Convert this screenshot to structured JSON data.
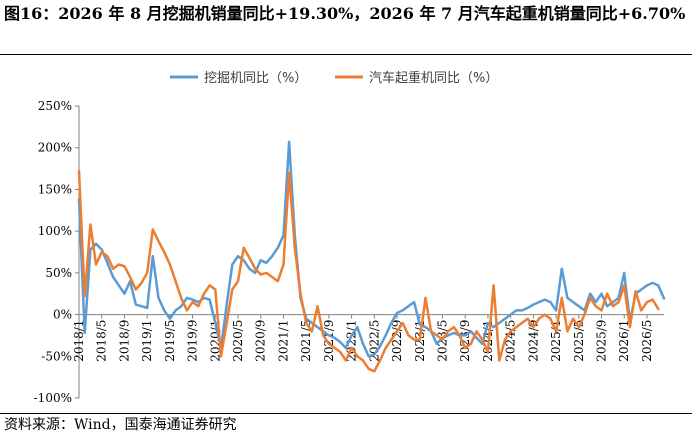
{
  "figure": {
    "title": "图16：2026 年 8 月挖掘机销量同比+19.30%，2026 年 7 月汽车起重机销量同比+6.70%",
    "source": "资料来源：Wind，国泰海通证券研究"
  },
  "chart_data": {
    "type": "line",
    "title": "",
    "xlabel": "",
    "ylabel": "",
    "ylim": [
      -100,
      250
    ],
    "ytick_labels": [
      "250%",
      "200%",
      "150%",
      "100%",
      "50%",
      "0%",
      "-50%",
      "-100%"
    ],
    "x_tick_labels": [
      "2018/1",
      "2018/5",
      "2018/9",
      "2019/1",
      "2019/5",
      "2019/9",
      "2020/1",
      "2020/5",
      "2020/9",
      "2021/1",
      "2021/5",
      "2021/9",
      "2022/1",
      "2022/5",
      "2022/9",
      "2023/1",
      "2023/5",
      "2023/9",
      "2024/1",
      "2024/5",
      "2024/9",
      "2025/1",
      "2025/5",
      "2025/9",
      "2026/1",
      "2026/5"
    ],
    "legend_position": "top-center",
    "grid": false,
    "series": [
      {
        "name": "挖掘机同比（%）",
        "color": "#5B9BD5",
        "points": [
          [
            "2018/1",
            138
          ],
          [
            "2018/2",
            -22
          ],
          [
            "2018/3",
            78
          ],
          [
            "2018/4",
            85
          ],
          [
            "2018/5",
            78
          ],
          [
            "2018/6",
            62
          ],
          [
            "2018/7",
            45
          ],
          [
            "2018/8",
            35
          ],
          [
            "2018/9",
            25
          ],
          [
            "2018/10",
            40
          ],
          [
            "2018/11",
            12
          ],
          [
            "2018/12",
            10
          ],
          [
            "2019/1",
            8
          ],
          [
            "2019/2",
            70
          ],
          [
            "2019/3",
            20
          ],
          [
            "2019/4",
            5
          ],
          [
            "2019/5",
            -5
          ],
          [
            "2019/6",
            5
          ],
          [
            "2019/7",
            10
          ],
          [
            "2019/8",
            20
          ],
          [
            "2019/9",
            18
          ],
          [
            "2019/10",
            15
          ],
          [
            "2019/11",
            20
          ],
          [
            "2019/12",
            18
          ],
          [
            "2020/1",
            -10
          ],
          [
            "2020/2",
            -40
          ],
          [
            "2020/3",
            12
          ],
          [
            "2020/4",
            60
          ],
          [
            "2020/5",
            70
          ],
          [
            "2020/6",
            65
          ],
          [
            "2020/7",
            55
          ],
          [
            "2020/8",
            50
          ],
          [
            "2020/9",
            65
          ],
          [
            "2020/10",
            62
          ],
          [
            "2020/11",
            70
          ],
          [
            "2020/12",
            80
          ],
          [
            "2021/1",
            95
          ],
          [
            "2021/2",
            207
          ],
          [
            "2021/3",
            95
          ],
          [
            "2021/4",
            20
          ],
          [
            "2021/5",
            -5
          ],
          [
            "2021/6",
            -10
          ],
          [
            "2021/7",
            -15
          ],
          [
            "2021/8",
            -20
          ],
          [
            "2021/9",
            -25
          ],
          [
            "2021/10",
            -28
          ],
          [
            "2021/11",
            -33
          ],
          [
            "2021/12",
            -40
          ],
          [
            "2022/1",
            -25
          ],
          [
            "2022/2",
            -15
          ],
          [
            "2022/3",
            -35
          ],
          [
            "2022/4",
            -50
          ],
          [
            "2022/5",
            -48
          ],
          [
            "2022/6",
            -38
          ],
          [
            "2022/7",
            -25
          ],
          [
            "2022/8",
            -10
          ],
          [
            "2022/9",
            2
          ],
          [
            "2022/10",
            5
          ],
          [
            "2022/11",
            10
          ],
          [
            "2022/12",
            15
          ],
          [
            "2023/1",
            -12
          ],
          [
            "2023/2",
            -15
          ],
          [
            "2023/3",
            -20
          ],
          [
            "2023/4",
            -35
          ],
          [
            "2023/5",
            -28
          ],
          [
            "2023/6",
            -25
          ],
          [
            "2023/7",
            -22
          ],
          [
            "2023/8",
            -25
          ],
          [
            "2023/9",
            -25
          ],
          [
            "2023/10",
            -20
          ],
          [
            "2023/11",
            -28
          ],
          [
            "2023/12",
            -35
          ],
          [
            "2024/1",
            -10
          ],
          [
            "2024/2",
            -15
          ],
          [
            "2024/3",
            -10
          ],
          [
            "2024/4",
            -5
          ],
          [
            "2024/5",
            0
          ],
          [
            "2024/6",
            5
          ],
          [
            "2024/7",
            5
          ],
          [
            "2024/8",
            8
          ],
          [
            "2024/9",
            12
          ],
          [
            "2024/10",
            15
          ],
          [
            "2024/11",
            18
          ],
          [
            "2024/12",
            15
          ],
          [
            "2025/1",
            5
          ],
          [
            "2025/2",
            55
          ],
          [
            "2025/3",
            20
          ],
          [
            "2025/4",
            15
          ],
          [
            "2025/5",
            10
          ],
          [
            "2025/6",
            5
          ],
          [
            "2025/7",
            25
          ],
          [
            "2025/8",
            15
          ],
          [
            "2025/9",
            25
          ],
          [
            "2025/10",
            10
          ],
          [
            "2025/11",
            15
          ],
          [
            "2025/12",
            20
          ],
          [
            "2026/1",
            50
          ],
          [
            "2026/2",
            -8
          ],
          [
            "2026/3",
            25
          ],
          [
            "2026/4",
            30
          ],
          [
            "2026/5",
            35
          ],
          [
            "2026/6",
            38
          ],
          [
            "2026/7",
            35
          ],
          [
            "2026/8",
            19.3
          ]
        ]
      },
      {
        "name": "汽车起重机同比（%）",
        "color": "#ED7D31",
        "points": [
          [
            "2018/1",
            172
          ],
          [
            "2018/2",
            22
          ],
          [
            "2018/3",
            108
          ],
          [
            "2018/4",
            60
          ],
          [
            "2018/5",
            75
          ],
          [
            "2018/6",
            70
          ],
          [
            "2018/7",
            55
          ],
          [
            "2018/8",
            60
          ],
          [
            "2018/9",
            58
          ],
          [
            "2018/10",
            45
          ],
          [
            "2018/11",
            30
          ],
          [
            "2018/12",
            38
          ],
          [
            "2019/1",
            50
          ],
          [
            "2019/2",
            102
          ],
          [
            "2019/3",
            88
          ],
          [
            "2019/4",
            75
          ],
          [
            "2019/5",
            60
          ],
          [
            "2019/6",
            40
          ],
          [
            "2019/7",
            20
          ],
          [
            "2019/8",
            5
          ],
          [
            "2019/9",
            15
          ],
          [
            "2019/10",
            10
          ],
          [
            "2019/11",
            25
          ],
          [
            "2019/12",
            35
          ],
          [
            "2020/1",
            30
          ],
          [
            "2020/2",
            -50
          ],
          [
            "2020/3",
            -10
          ],
          [
            "2020/4",
            30
          ],
          [
            "2020/5",
            40
          ],
          [
            "2020/6",
            80
          ],
          [
            "2020/7",
            68
          ],
          [
            "2020/8",
            55
          ],
          [
            "2020/9",
            48
          ],
          [
            "2020/10",
            50
          ],
          [
            "2020/11",
            45
          ],
          [
            "2020/12",
            40
          ],
          [
            "2021/1",
            60
          ],
          [
            "2021/2",
            170
          ],
          [
            "2021/3",
            80
          ],
          [
            "2021/4",
            25
          ],
          [
            "2021/5",
            -10
          ],
          [
            "2021/6",
            -20
          ],
          [
            "2021/7",
            10
          ],
          [
            "2021/8",
            -25
          ],
          [
            "2021/9",
            -35
          ],
          [
            "2021/10",
            -40
          ],
          [
            "2021/11",
            -45
          ],
          [
            "2021/12",
            -55
          ],
          [
            "2022/1",
            -40
          ],
          [
            "2022/2",
            -50
          ],
          [
            "2022/3",
            -55
          ],
          [
            "2022/4",
            -65
          ],
          [
            "2022/5",
            -68
          ],
          [
            "2022/6",
            -55
          ],
          [
            "2022/7",
            -40
          ],
          [
            "2022/8",
            -30
          ],
          [
            "2022/9",
            -20
          ],
          [
            "2022/10",
            -10
          ],
          [
            "2022/11",
            -25
          ],
          [
            "2022/12",
            -30
          ],
          [
            "2023/1",
            -30
          ],
          [
            "2023/2",
            20
          ],
          [
            "2023/3",
            -20
          ],
          [
            "2023/4",
            -25
          ],
          [
            "2023/5",
            -30
          ],
          [
            "2023/6",
            -20
          ],
          [
            "2023/7",
            -15
          ],
          [
            "2023/8",
            -25
          ],
          [
            "2023/9",
            -40
          ],
          [
            "2023/10",
            -35
          ],
          [
            "2023/11",
            -20
          ],
          [
            "2023/12",
            -30
          ],
          [
            "2024/1",
            -45
          ],
          [
            "2024/2",
            35
          ],
          [
            "2024/3",
            -55
          ],
          [
            "2024/4",
            -30
          ],
          [
            "2024/5",
            -20
          ],
          [
            "2024/6",
            -15
          ],
          [
            "2024/7",
            -10
          ],
          [
            "2024/8",
            -5
          ],
          [
            "2024/9",
            -15
          ],
          [
            "2024/10",
            -5
          ],
          [
            "2024/11",
            0
          ],
          [
            "2024/12",
            -5
          ],
          [
            "2025/1",
            -20
          ],
          [
            "2025/2",
            20
          ],
          [
            "2025/3",
            -20
          ],
          [
            "2025/4",
            -5
          ],
          [
            "2025/5",
            -15
          ],
          [
            "2025/6",
            0
          ],
          [
            "2025/7",
            20
          ],
          [
            "2025/8",
            10
          ],
          [
            "2025/9",
            5
          ],
          [
            "2025/10",
            25
          ],
          [
            "2025/11",
            10
          ],
          [
            "2025/12",
            15
          ],
          [
            "2026/1",
            35
          ],
          [
            "2026/2",
            -15
          ],
          [
            "2026/3",
            28
          ],
          [
            "2026/4",
            5
          ],
          [
            "2026/5",
            15
          ],
          [
            "2026/6",
            18
          ],
          [
            "2026/7",
            6.7
          ]
        ]
      }
    ]
  }
}
